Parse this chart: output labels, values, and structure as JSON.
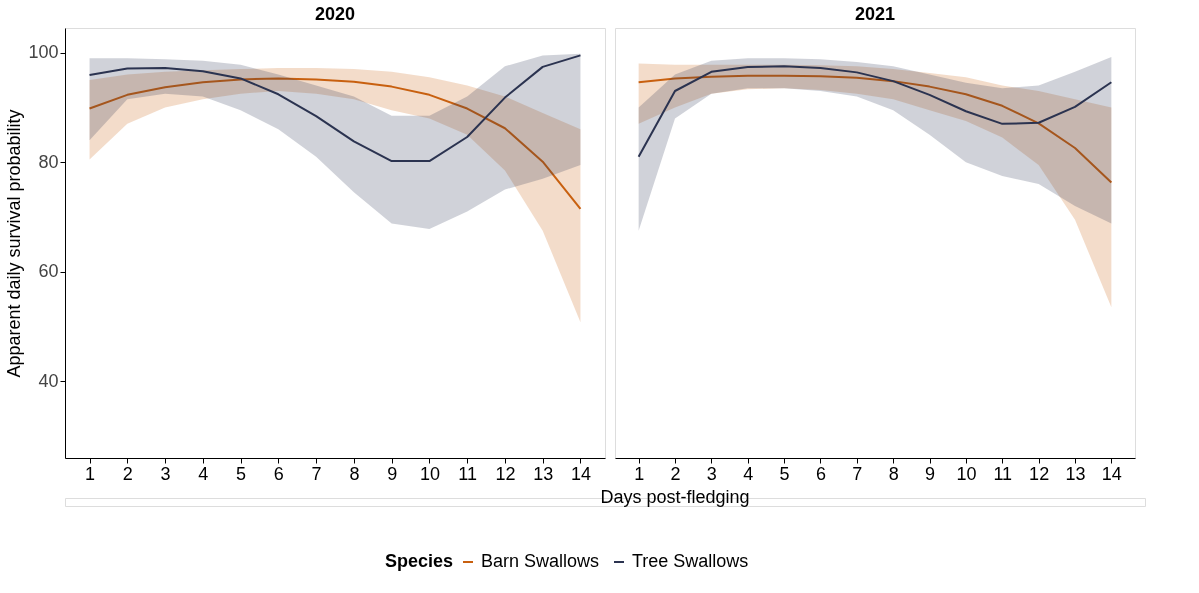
{
  "chart_data": [
    {
      "type": "line",
      "title": "2020",
      "xlabel": "Days post-fledging",
      "ylabel": "Apparent daily survival probability",
      "legend_title": "Species",
      "legend": "bottom",
      "grid": false,
      "x": [
        1,
        2,
        3,
        4,
        5,
        6,
        7,
        8,
        9,
        10,
        11,
        12,
        13,
        14
      ],
      "xlim": [
        0.35,
        14.65
      ],
      "xticks": [
        1,
        2,
        3,
        4,
        5,
        6,
        7,
        8,
        9,
        10,
        11,
        12,
        13,
        14
      ],
      "ylim": [
        26,
        104.5
      ],
      "yticks": [
        40,
        60,
        80,
        100
      ],
      "series": [
        {
          "name": "Barn Swallows",
          "color": "#c8600f",
          "values": [
            89.8,
            92.3,
            93.7,
            94.6,
            95.1,
            95.3,
            95.1,
            94.7,
            93.8,
            92.3,
            89.8,
            86.2,
            80.1,
            71.5
          ],
          "lower": [
            80.5,
            87,
            90,
            91.5,
            92.5,
            93,
            92.5,
            91.5,
            89.5,
            88,
            85,
            78.5,
            67.5,
            50.8
          ],
          "upper": [
            95,
            96,
            96.5,
            96.8,
            97,
            97.2,
            97.2,
            97,
            96.5,
            95.5,
            94,
            92,
            89,
            86
          ]
        },
        {
          "name": "Tree Swallows",
          "color": "#2b3350",
          "values": [
            95.9,
            97.1,
            97.2,
            96.6,
            95.3,
            92.4,
            88.4,
            83.8,
            80.2,
            80.2,
            84.6,
            91.8,
            97.4,
            99.5
          ],
          "lower": [
            84,
            91.5,
            92.5,
            92,
            89.5,
            86,
            81,
            74.5,
            68.8,
            67.8,
            71,
            75,
            77,
            79.5
          ],
          "upper": [
            99,
            99,
            98.8,
            98.5,
            97.8,
            96,
            94,
            92,
            88.5,
            88.5,
            92,
            97.5,
            99.5,
            99.8
          ]
        }
      ]
    },
    {
      "type": "line",
      "title": "2021",
      "grid": false,
      "tick_labels": "x",
      "x": [
        1,
        2,
        3,
        4,
        5,
        6,
        7,
        8,
        9,
        10,
        11,
        12,
        13,
        14
      ],
      "xlim": [
        0.35,
        14.65
      ],
      "xticks": [
        1,
        2,
        3,
        4,
        5,
        6,
        7,
        8,
        9,
        10,
        11,
        12,
        13,
        14
      ],
      "ylim": [
        26,
        104.5
      ],
      "yticks": [
        40,
        60,
        80,
        100
      ],
      "series": [
        {
          "name": "Barn Swallows",
          "color": "#c8600f",
          "values": [
            94.6,
            95.3,
            95.6,
            95.8,
            95.8,
            95.7,
            95.4,
            94.8,
            93.8,
            92.4,
            90.3,
            87.1,
            82.6,
            76.3
          ],
          "lower": [
            87,
            90,
            92.5,
            93.3,
            93.5,
            93.2,
            92.5,
            91.5,
            89.5,
            87.5,
            84.5,
            79.5,
            69.5,
            53.5
          ],
          "upper": [
            98,
            97.8,
            97.8,
            97.8,
            97.8,
            97.7,
            97.5,
            97,
            96.3,
            95.5,
            94,
            93,
            91.5,
            90
          ]
        },
        {
          "name": "Tree Swallows",
          "color": "#2b3350",
          "values": [
            81,
            93,
            96.5,
            97.4,
            97.5,
            97.2,
            96.4,
            94.8,
            92.3,
            89.3,
            87,
            87.2,
            90.1,
            94.6
          ],
          "lower": [
            67.5,
            88,
            92.5,
            93.5,
            93.5,
            93,
            92,
            89.5,
            85,
            80,
            77.5,
            76,
            72,
            68.8
          ],
          "upper": [
            90,
            96,
            98.5,
            99,
            99,
            98.8,
            98.3,
            97.5,
            96,
            94.5,
            93.5,
            94,
            96.5,
            99.2
          ]
        }
      ]
    }
  ]
}
